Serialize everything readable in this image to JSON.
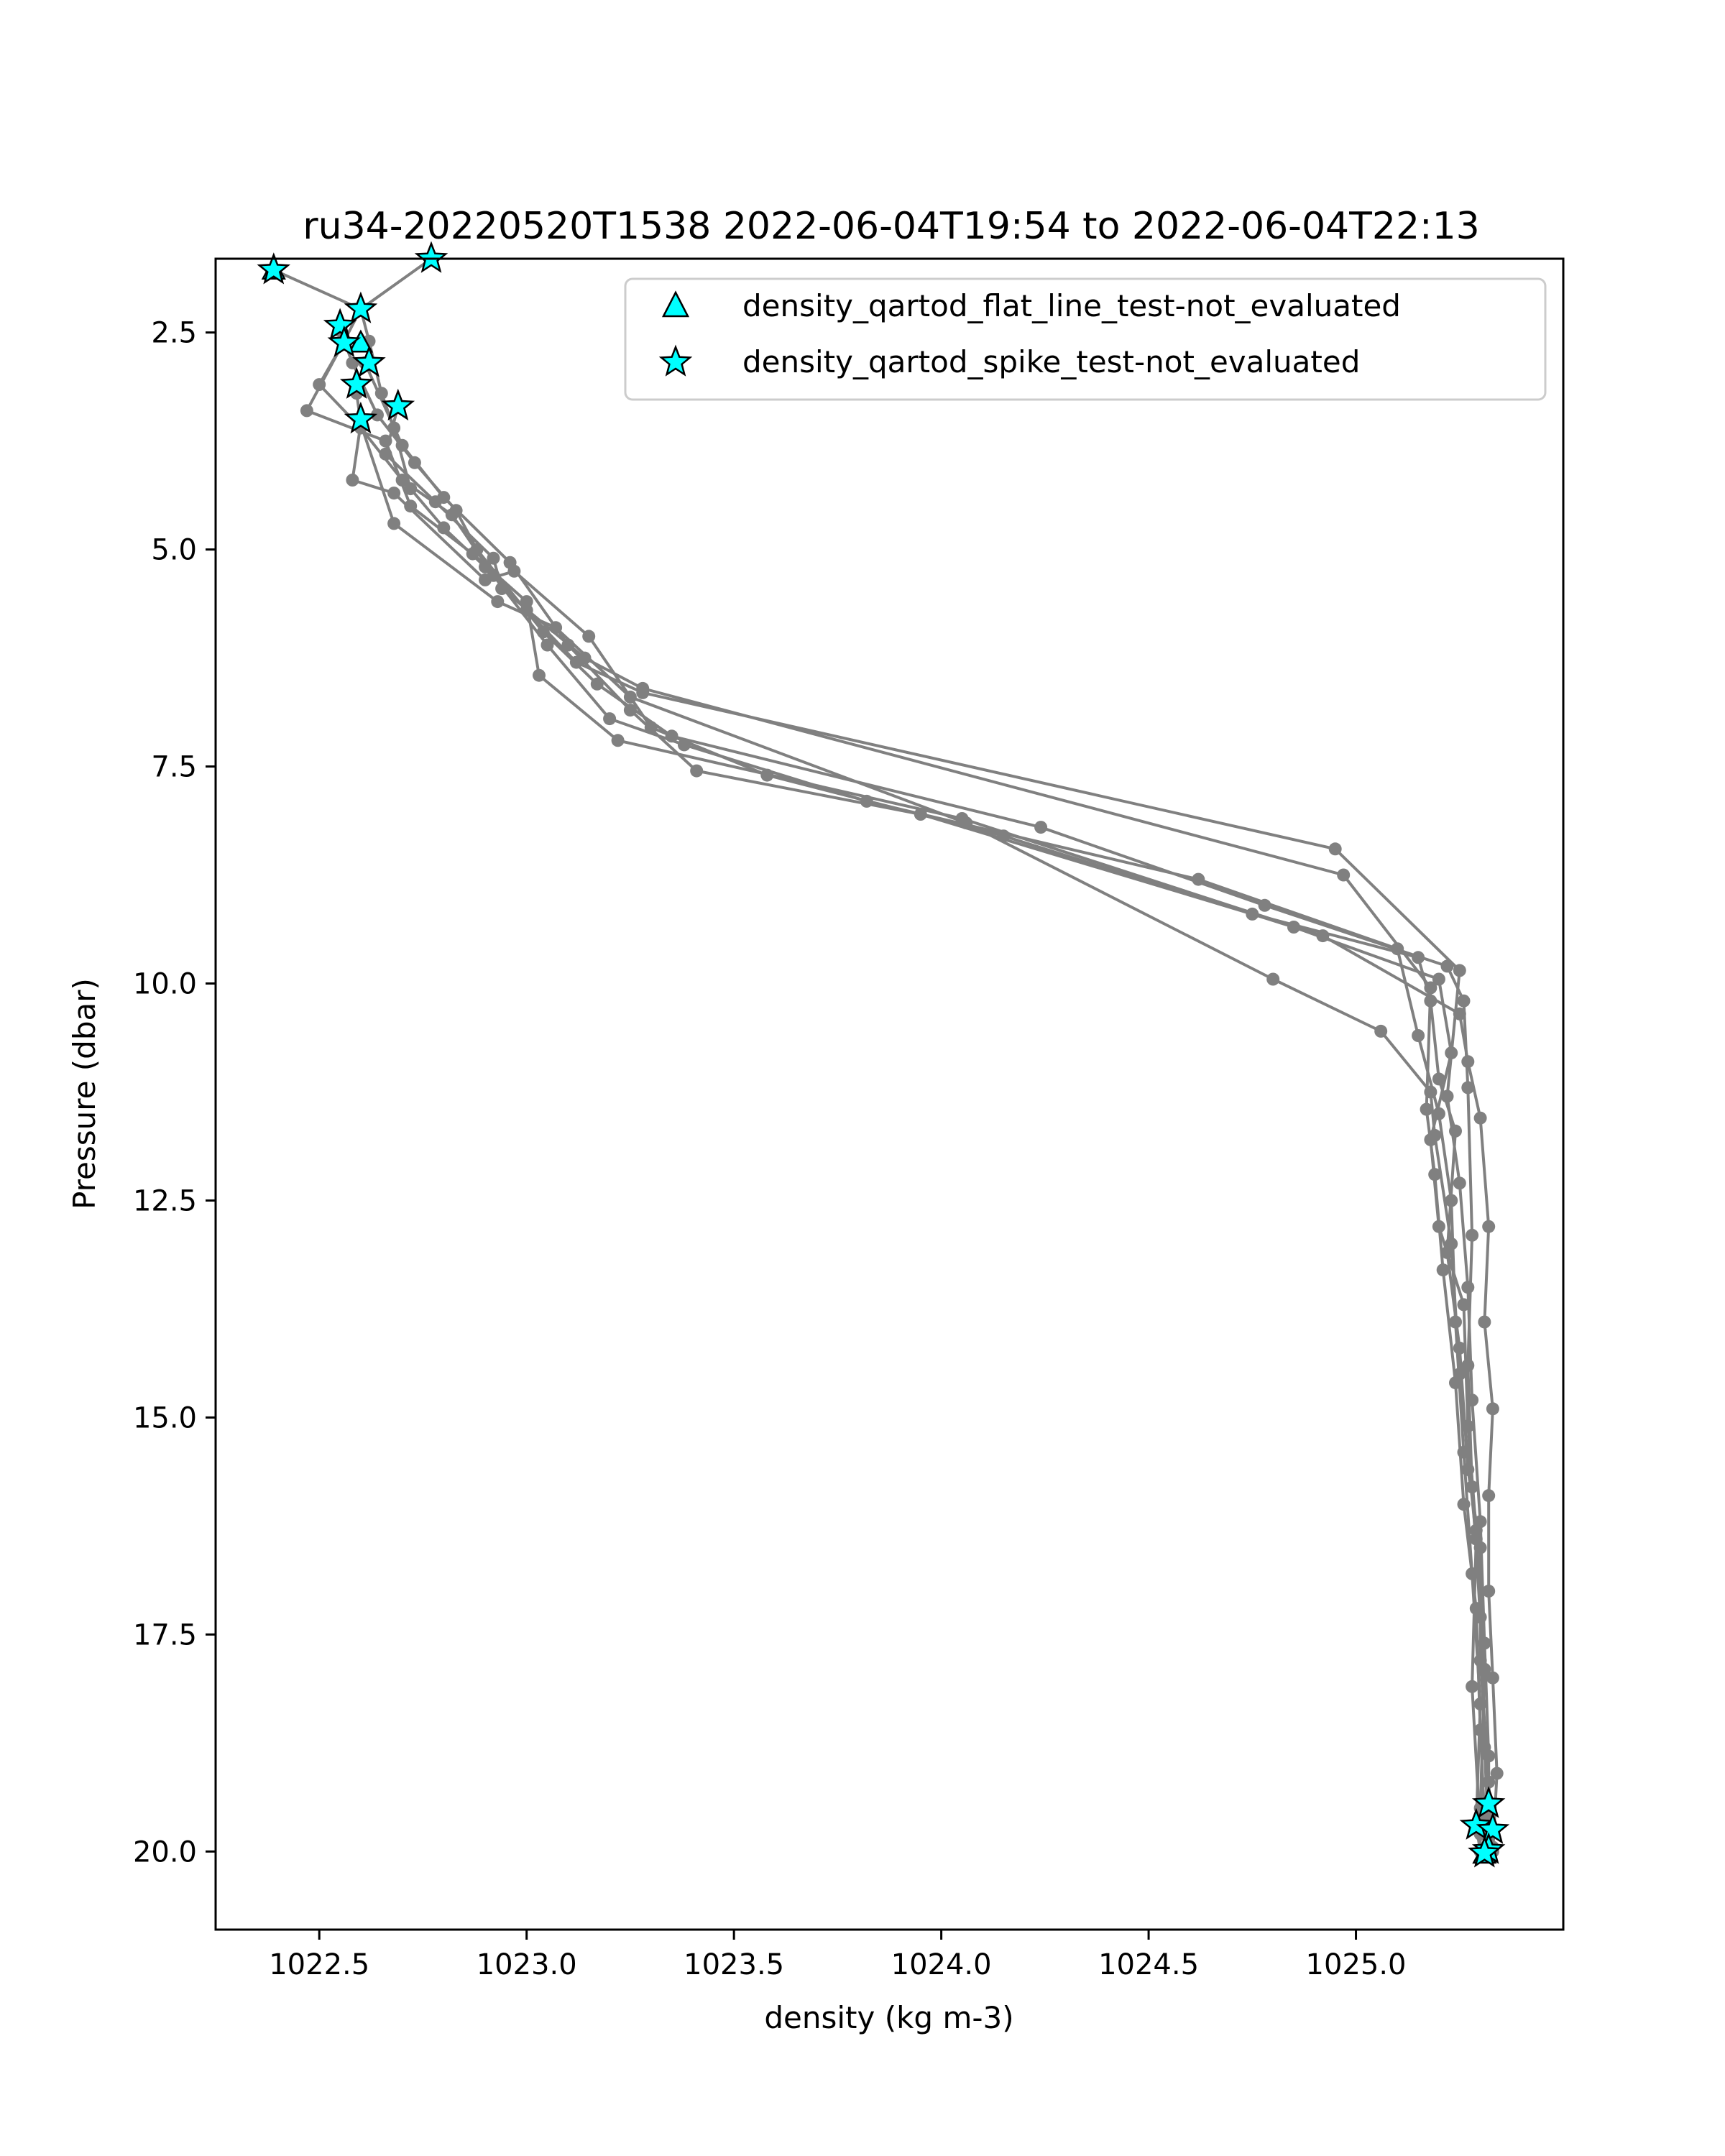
{
  "chart_data": {
    "type": "scatter",
    "title": "ru34-20220520T1538 2022-06-04T19:54 to 2022-06-04T22:13",
    "xlabel": "density (kg m-3)",
    "ylabel": "Pressure (dbar)",
    "xlim": [
      1022.25,
      1025.5
    ],
    "ylim": [
      20.9,
      1.65
    ],
    "y_inverted": true,
    "grid": false,
    "legend_position": "top-right",
    "x_ticks": [
      "1022.5",
      "1023.0",
      "1023.5",
      "1024.0",
      "1024.5",
      "1025.0"
    ],
    "x_tick_values": [
      1022.5,
      1023.0,
      1023.5,
      1024.0,
      1024.5,
      1025.0
    ],
    "y_ticks": [
      "2.5",
      "5.0",
      "7.5",
      "10.0",
      "12.5",
      "15.0",
      "17.5",
      "20.0"
    ],
    "y_tick_values": [
      2.5,
      5.0,
      7.5,
      10.0,
      12.5,
      15.0,
      17.5,
      20.0
    ],
    "line_color": "#808080",
    "marker_color": "#00ffff",
    "legend": [
      {
        "label": "density_qartod_flat_line_test-not_evaluated",
        "marker": "triangle"
      },
      {
        "label": "density_qartod_spike_test-not_evaluated",
        "marker": "star"
      }
    ],
    "profiles": [
      {
        "points": [
          [
            1022.39,
            1.78
          ],
          [
            1022.6,
            2.23
          ],
          [
            1022.62,
            2.6
          ],
          [
            1022.65,
            3.2
          ],
          [
            1022.68,
            3.6
          ],
          [
            1022.72,
            4.3
          ],
          [
            1022.8,
            4.75
          ],
          [
            1022.9,
            5.2
          ],
          [
            1023.0,
            5.7
          ],
          [
            1023.12,
            6.3
          ],
          [
            1023.28,
            6.65
          ],
          [
            1024.95,
            8.45
          ],
          [
            1025.25,
            9.85
          ],
          [
            1025.22,
            11.3
          ],
          [
            1025.25,
            12.3
          ],
          [
            1025.27,
            13.5
          ],
          [
            1025.28,
            14.8
          ],
          [
            1025.3,
            16.2
          ],
          [
            1025.31,
            17.6
          ],
          [
            1025.32,
            18.9
          ],
          [
            1025.32,
            19.7
          ],
          [
            1025.32,
            20.0
          ]
        ]
      },
      {
        "points": [
          [
            1022.77,
            1.65
          ],
          [
            1022.6,
            2.23
          ],
          [
            1022.56,
            2.6
          ],
          [
            1022.5,
            3.1
          ],
          [
            1022.6,
            3.6
          ],
          [
            1022.7,
            4.2
          ],
          [
            1022.82,
            4.6
          ],
          [
            1022.92,
            5.3
          ],
          [
            1023.05,
            6.1
          ],
          [
            1023.2,
            6.95
          ],
          [
            1023.38,
            7.25
          ],
          [
            1023.82,
            7.9
          ],
          [
            1024.62,
            8.8
          ],
          [
            1025.1,
            9.6
          ],
          [
            1025.15,
            10.6
          ],
          [
            1025.2,
            11.5
          ],
          [
            1025.23,
            12.5
          ],
          [
            1025.24,
            13.9
          ],
          [
            1025.26,
            15.4
          ],
          [
            1025.28,
            16.8
          ],
          [
            1025.3,
            18.3
          ],
          [
            1025.29,
            19.7
          ],
          [
            1025.3,
            20.0
          ]
        ]
      },
      {
        "points": [
          [
            1022.55,
            2.48
          ],
          [
            1022.58,
            2.85
          ],
          [
            1022.64,
            3.45
          ],
          [
            1022.73,
            4.0
          ],
          [
            1022.83,
            4.55
          ],
          [
            1022.88,
            5.0
          ],
          [
            1023.04,
            5.95
          ],
          [
            1023.17,
            6.55
          ],
          [
            1023.35,
            7.15
          ],
          [
            1024.24,
            8.2
          ],
          [
            1024.78,
            9.1
          ],
          [
            1025.22,
            9.8
          ],
          [
            1025.26,
            10.2
          ],
          [
            1025.27,
            11.2
          ],
          [
            1025.28,
            12.9
          ],
          [
            1025.27,
            14.4
          ],
          [
            1025.28,
            15.8
          ],
          [
            1025.3,
            17.3
          ],
          [
            1025.31,
            18.8
          ],
          [
            1025.32,
            19.85
          ]
        ]
      },
      {
        "points": [
          [
            1022.56,
            2.6
          ],
          [
            1022.47,
            3.4
          ],
          [
            1022.66,
            3.75
          ],
          [
            1022.72,
            4.5
          ],
          [
            1022.87,
            5.05
          ],
          [
            1023.0,
            5.6
          ],
          [
            1023.03,
            6.45
          ],
          [
            1023.22,
            7.2
          ],
          [
            1024.05,
            8.1
          ],
          [
            1024.92,
            9.45
          ],
          [
            1025.25,
            10.35
          ],
          [
            1025.27,
            10.9
          ],
          [
            1025.3,
            11.55
          ],
          [
            1025.32,
            12.8
          ],
          [
            1025.31,
            13.9
          ],
          [
            1025.33,
            14.9
          ],
          [
            1025.32,
            15.9
          ],
          [
            1025.32,
            17.0
          ],
          [
            1025.33,
            18.0
          ],
          [
            1025.34,
            19.1
          ],
          [
            1025.33,
            20.0
          ]
        ]
      },
      {
        "points": [
          [
            1022.59,
            3.2
          ],
          [
            1022.6,
            3.55
          ],
          [
            1022.58,
            4.2
          ],
          [
            1022.68,
            4.35
          ],
          [
            1022.9,
            5.35
          ],
          [
            1022.97,
            5.25
          ],
          [
            1023.15,
            6.0
          ],
          [
            1023.3,
            7.05
          ],
          [
            1023.58,
            7.6
          ],
          [
            1024.15,
            8.3
          ],
          [
            1024.85,
            9.35
          ],
          [
            1025.2,
            9.95
          ],
          [
            1025.23,
            10.8
          ],
          [
            1025.18,
            11.8
          ],
          [
            1025.2,
            12.8
          ],
          [
            1025.26,
            13.7
          ],
          [
            1025.27,
            15.1
          ],
          [
            1025.29,
            16.3
          ],
          [
            1025.31,
            17.9
          ],
          [
            1025.3,
            19.5
          ]
        ]
      },
      {
        "points": [
          [
            1022.61,
            2.85
          ],
          [
            1022.7,
            3.8
          ],
          [
            1022.8,
            4.4
          ],
          [
            1022.96,
            5.15
          ],
          [
            1023.1,
            6.1
          ],
          [
            1023.25,
            6.85
          ],
          [
            1023.41,
            7.55
          ],
          [
            1023.95,
            8.05
          ],
          [
            1024.75,
            9.2
          ],
          [
            1025.15,
            9.7
          ],
          [
            1025.18,
            10.2
          ],
          [
            1025.2,
            11.1
          ],
          [
            1025.24,
            11.7
          ],
          [
            1025.22,
            13.1
          ],
          [
            1025.25,
            14.2
          ],
          [
            1025.27,
            15.6
          ],
          [
            1025.3,
            16.5
          ],
          [
            1025.3,
            17.8
          ],
          [
            1025.32,
            19.2
          ],
          [
            1025.33,
            19.95
          ]
        ]
      },
      {
        "points": [
          [
            1022.69,
            3.35
          ],
          [
            1022.66,
            3.9
          ],
          [
            1022.78,
            4.45
          ],
          [
            1022.92,
            5.1
          ],
          [
            1022.94,
            5.45
          ],
          [
            1023.14,
            6.25
          ],
          [
            1023.28,
            6.6
          ],
          [
            1024.97,
            8.75
          ],
          [
            1025.18,
            10.05
          ],
          [
            1025.17,
            11.45
          ],
          [
            1025.19,
            12.2
          ],
          [
            1025.21,
            13.3
          ],
          [
            1025.24,
            14.6
          ],
          [
            1025.26,
            16.0
          ],
          [
            1025.29,
            17.2
          ],
          [
            1025.3,
            18.6
          ],
          [
            1025.31,
            19.6
          ]
        ]
      },
      {
        "points": [
          [
            1022.6,
            3.55
          ],
          [
            1022.68,
            4.7
          ],
          [
            1022.93,
            5.6
          ],
          [
            1023.07,
            5.9
          ],
          [
            1023.25,
            6.7
          ],
          [
            1024.06,
            8.15
          ],
          [
            1024.8,
            9.95
          ],
          [
            1025.06,
            10.55
          ],
          [
            1025.18,
            11.25
          ],
          [
            1025.19,
            11.75
          ],
          [
            1025.23,
            13.0
          ],
          [
            1025.25,
            14.5
          ],
          [
            1025.29,
            16.4
          ],
          [
            1025.28,
            18.1
          ],
          [
            1025.3,
            19.8
          ],
          [
            1025.3,
            20.0
          ]
        ]
      }
    ],
    "spike_markers": [
      [
        1022.39,
        1.78
      ],
      [
        1022.77,
        1.65
      ],
      [
        1022.6,
        2.23
      ],
      [
        1022.55,
        2.42
      ],
      [
        1022.56,
        2.62
      ],
      [
        1022.62,
        2.85
      ],
      [
        1022.59,
        3.1
      ],
      [
        1022.69,
        3.35
      ],
      [
        1022.6,
        3.5
      ],
      [
        1025.32,
        19.45
      ],
      [
        1025.29,
        19.7
      ],
      [
        1025.33,
        19.75
      ],
      [
        1025.32,
        19.98
      ],
      [
        1025.31,
        20.02
      ]
    ],
    "flat_line_markers": [
      [
        1022.39,
        1.78
      ],
      [
        1022.6,
        2.62
      ],
      [
        1025.31,
        20.03
      ]
    ]
  }
}
